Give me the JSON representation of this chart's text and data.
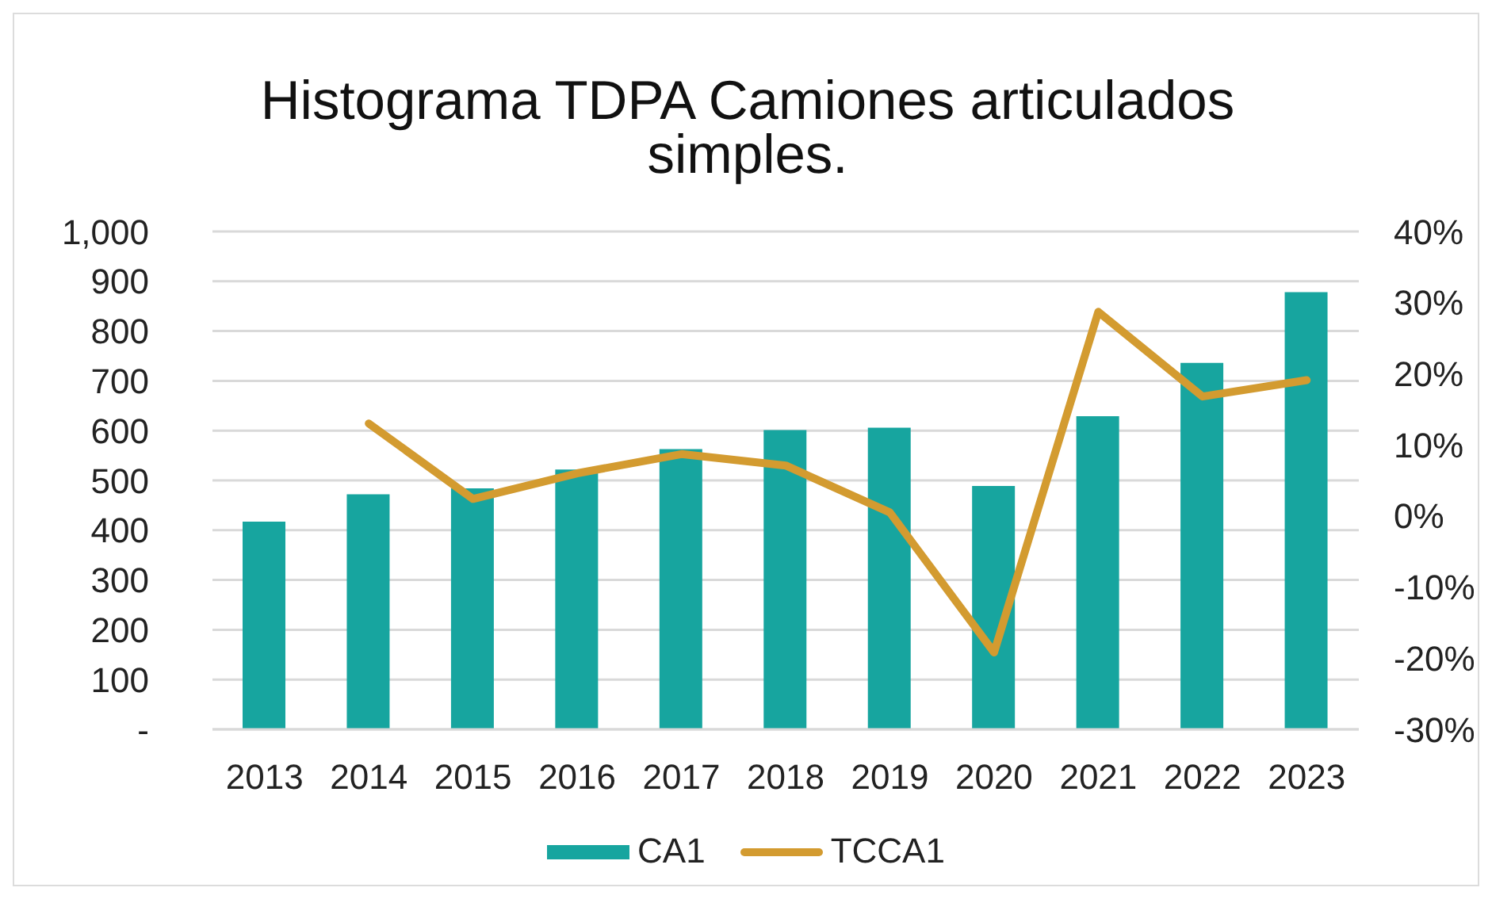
{
  "chart_data": {
    "type": "bar",
    "title": "Histograma TDPA Camiones articulados simples.",
    "categories": [
      "2013",
      "2014",
      "2015",
      "2016",
      "2017",
      "2018",
      "2019",
      "2020",
      "2021",
      "2022",
      "2023"
    ],
    "series": [
      {
        "name": "CA1",
        "color": "#17a59f",
        "values": [
          417,
          472,
          484,
          522,
          563,
          601,
          606,
          489,
          629,
          736,
          878
        ]
      },
      {
        "name": "TCCA1",
        "type": "line",
        "axis": "y2",
        "color": "#d39b30",
        "values": [
          null,
          13.0,
          2.4,
          6.0,
          8.7,
          7.1,
          0.5,
          -19.2,
          28.7,
          16.8,
          19.1
        ]
      }
    ],
    "ylim": [
      0,
      1000
    ],
    "yticks": [
      {
        "value": 0,
        "label": "-"
      },
      100,
      200,
      300,
      400,
      500,
      600,
      700,
      800,
      900,
      {
        "value": 1000,
        "label": "1,000"
      }
    ],
    "y2lim": [
      -30,
      40
    ],
    "y2ticks": [
      {
        "value": -30,
        "label": "-30%"
      },
      {
        "value": -20,
        "label": "-20%"
      },
      {
        "value": -10,
        "label": "-10%"
      },
      {
        "value": 0,
        "label": "0%"
      },
      {
        "value": 10,
        "label": "10%"
      },
      {
        "value": 20,
        "label": "20%"
      },
      {
        "value": 30,
        "label": "30%"
      },
      {
        "value": 40,
        "label": "40%"
      }
    ],
    "grid": "y",
    "legend": "bottom",
    "marker": "none",
    "line_style": "solid"
  }
}
